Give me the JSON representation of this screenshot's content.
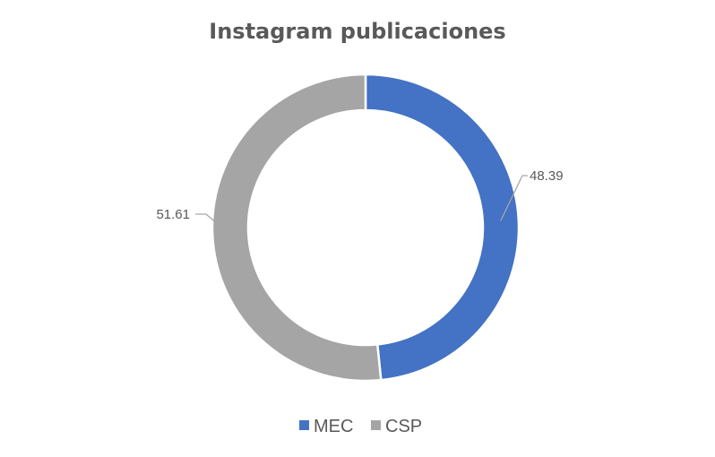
{
  "chart_data": {
    "type": "pie",
    "title": "Instagram publicaciones",
    "categories": [
      "MEC",
      "CSP"
    ],
    "values": [
      48.39,
      51.61
    ],
    "value_labels": [
      "48.39",
      "51.61"
    ],
    "colors": [
      "#4472C4",
      "#A5A5A5"
    ],
    "donut": true,
    "legend_position": "bottom"
  }
}
